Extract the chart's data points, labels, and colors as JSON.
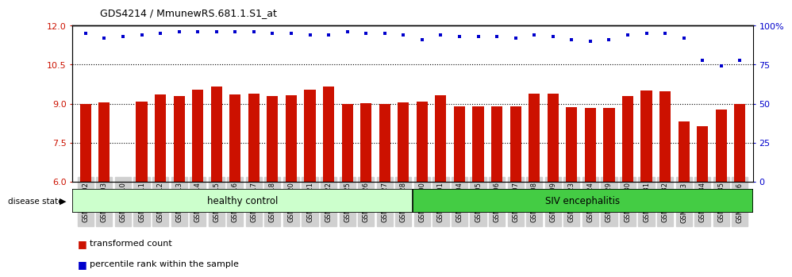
{
  "title": "GDS4214 / MmunewRS.681.1.S1_at",
  "samples": [
    "GSM347802",
    "GSM347803",
    "GSM347810",
    "GSM347811",
    "GSM347812",
    "GSM347813",
    "GSM347814",
    "GSM347815",
    "GSM347816",
    "GSM347817",
    "GSM347818",
    "GSM347820",
    "GSM347821",
    "GSM347822",
    "GSM347825",
    "GSM347826",
    "GSM347827",
    "GSM347828",
    "GSM347800",
    "GSM347801",
    "GSM347804",
    "GSM347805",
    "GSM347806",
    "GSM347807",
    "GSM347808",
    "GSM347809",
    "GSM347823",
    "GSM347824",
    "GSM347829",
    "GSM347830",
    "GSM347831",
    "GSM347832",
    "GSM347833",
    "GSM347834",
    "GSM347835",
    "GSM347836"
  ],
  "bar_values": [
    9.0,
    9.05,
    6.0,
    9.08,
    9.35,
    9.28,
    9.55,
    9.65,
    9.35,
    9.38,
    9.3,
    9.33,
    9.55,
    9.65,
    9.0,
    9.03,
    9.0,
    9.05,
    9.08,
    9.33,
    8.88,
    8.88,
    8.88,
    8.88,
    9.38,
    9.38,
    8.85,
    8.82,
    8.82,
    9.28,
    9.5,
    9.48,
    8.32,
    8.12,
    8.78,
    8.98
  ],
  "percentile_values": [
    95,
    92,
    93,
    94,
    95,
    96,
    96,
    96,
    96,
    96,
    95,
    95,
    94,
    94,
    96,
    95,
    95,
    94,
    91,
    94,
    93,
    93,
    93,
    92,
    94,
    93,
    91,
    90,
    91,
    94,
    95,
    95,
    92,
    78,
    74,
    78
  ],
  "healthy_control_count": 18,
  "ylim_left": [
    6,
    12
  ],
  "ylim_right": [
    0,
    100
  ],
  "yticks_left": [
    6,
    7.5,
    9,
    10.5,
    12
  ],
  "yticks_right": [
    0,
    25,
    50,
    75,
    100
  ],
  "bar_color": "#cc1100",
  "dot_color": "#0000cc",
  "healthy_color": "#ccffcc",
  "siv_color": "#44cc44",
  "label_healthy": "healthy control",
  "label_siv": "SIV encephalitis",
  "disease_state_label": "disease state",
  "legend_bar_label": "transformed count",
  "legend_dot_label": "percentile rank within the sample",
  "tick_bg_color": "#d0d0d0",
  "axis_color_left": "#cc1100",
  "axis_color_right": "#0000cc"
}
